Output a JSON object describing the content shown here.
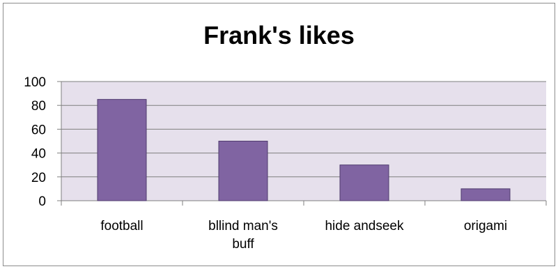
{
  "chart_data": {
    "type": "bar",
    "title": "Frank's likes",
    "categories": [
      "football",
      "bllind man's buff",
      "hide andseek",
      "origami"
    ],
    "category_label_lines": [
      [
        "football"
      ],
      [
        "bllind man's",
        "buff"
      ],
      [
        "hide andseek"
      ],
      [
        "origami"
      ]
    ],
    "values": [
      85,
      50,
      30,
      10
    ],
    "ylim": [
      0,
      100
    ],
    "yticks": [
      "0",
      "20",
      "40",
      "60",
      "80",
      "100"
    ],
    "xlabel": "",
    "ylabel": "",
    "grid": true,
    "legend": "none",
    "colors": {
      "bar_fill": "#8064a2",
      "bar_stroke": "#4f3b6e",
      "plot_background": "#e6e0ec",
      "gridline": "#7f7f7f",
      "axis": "#7f7f7f"
    }
  }
}
